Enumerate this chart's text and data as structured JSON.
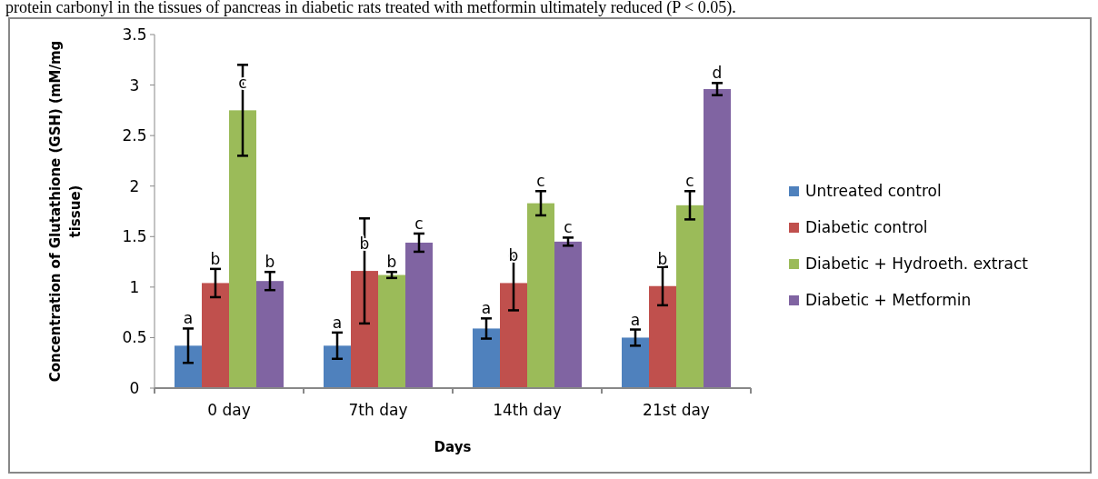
{
  "chart_data": {
    "type": "bar",
    "xlabel": "Days",
    "ylabel": "Concentration of Glutathione (GSH) (mM/mg tissue)",
    "categories": [
      "0 day",
      "7th day",
      "14th day",
      "21st day"
    ],
    "series": [
      {
        "name": "Untreated control",
        "color": "#4f81bd",
        "values": [
          0.42,
          0.42,
          0.59,
          0.5
        ],
        "errors": [
          0.17,
          0.13,
          0.1,
          0.08
        ],
        "value_labels": [
          "a",
          "a",
          "a",
          "a"
        ]
      },
      {
        "name": "Diabetic control",
        "color": "#c0504d",
        "values": [
          1.04,
          1.16,
          1.04,
          1.01
        ],
        "errors": [
          0.14,
          0.52,
          0.27,
          0.19
        ],
        "value_labels": [
          "b",
          "b",
          "b",
          "b"
        ]
      },
      {
        "name": "Diabetic + Hydroeth. extract",
        "color": "#9bbb59",
        "values": [
          2.75,
          1.12,
          1.83,
          1.81
        ],
        "errors": [
          0.45,
          0.03,
          0.12,
          0.14
        ],
        "value_labels": [
          "c",
          "b",
          "c",
          "c"
        ]
      },
      {
        "name": "Diabetic + Metformin",
        "color": "#8064a2",
        "values": [
          1.06,
          1.44,
          1.45,
          2.96
        ],
        "errors": [
          0.09,
          0.09,
          0.04,
          0.06
        ],
        "value_labels": [
          "b",
          "c",
          "c",
          "d"
        ]
      }
    ],
    "ylim": [
      0,
      3.5
    ],
    "yticks": [
      0,
      0.5,
      1,
      1.5,
      2,
      2.5,
      3,
      3.5
    ],
    "legend": "right",
    "annotations": [
      "protein carbonyl in the tissues of pancreas in diabetic rats treated with metformin ultimately reduced (P < 0.05)."
    ]
  }
}
